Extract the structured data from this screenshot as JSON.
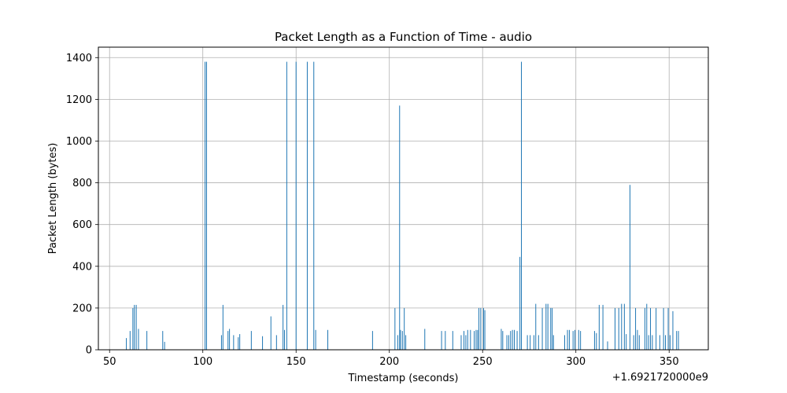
{
  "chart_data": {
    "type": "bar",
    "title": "Packet Length as a Function of Time - audio",
    "xlabel": "Timestamp (seconds)",
    "ylabel": "Packet Length (bytes)",
    "offset_label": "+1.6921720000e9",
    "xlim": [
      44,
      371
    ],
    "ylim": [
      0,
      1450
    ],
    "grid": true,
    "bar_color": "#1f77b4",
    "x_ticks": [
      "50",
      "100",
      "150",
      "200",
      "250",
      "300",
      "350"
    ],
    "y_ticks": [
      "0",
      "200",
      "400",
      "600",
      "800",
      "1000",
      "1200",
      "1400"
    ],
    "x_tick_values": [
      50,
      100,
      150,
      200,
      250,
      300,
      350
    ],
    "y_tick_values": [
      0,
      200,
      400,
      600,
      800,
      1000,
      1200,
      1400
    ],
    "points": [
      {
        "x": 59,
        "y": 56
      },
      {
        "x": 61,
        "y": 90
      },
      {
        "x": 62.5,
        "y": 200
      },
      {
        "x": 63.3,
        "y": 215
      },
      {
        "x": 64.3,
        "y": 215
      },
      {
        "x": 65.5,
        "y": 100
      },
      {
        "x": 70,
        "y": 90
      },
      {
        "x": 78.5,
        "y": 90
      },
      {
        "x": 79.5,
        "y": 38
      },
      {
        "x": 101.2,
        "y": 1380
      },
      {
        "x": 102,
        "y": 1380
      },
      {
        "x": 110,
        "y": 70
      },
      {
        "x": 110.8,
        "y": 215
      },
      {
        "x": 113.5,
        "y": 90
      },
      {
        "x": 114.3,
        "y": 100
      },
      {
        "x": 116.5,
        "y": 70
      },
      {
        "x": 119,
        "y": 60
      },
      {
        "x": 119.8,
        "y": 75
      },
      {
        "x": 126,
        "y": 90
      },
      {
        "x": 132,
        "y": 65
      },
      {
        "x": 136.5,
        "y": 160
      },
      {
        "x": 139.5,
        "y": 70
      },
      {
        "x": 143,
        "y": 215
      },
      {
        "x": 143.8,
        "y": 95
      },
      {
        "x": 145,
        "y": 1380
      },
      {
        "x": 150,
        "y": 1380
      },
      {
        "x": 156,
        "y": 1380
      },
      {
        "x": 159.5,
        "y": 1380
      },
      {
        "x": 160.5,
        "y": 95
      },
      {
        "x": 167,
        "y": 95
      },
      {
        "x": 191,
        "y": 90
      },
      {
        "x": 203,
        "y": 200
      },
      {
        "x": 204.5,
        "y": 70
      },
      {
        "x": 205.5,
        "y": 1170
      },
      {
        "x": 206,
        "y": 95
      },
      {
        "x": 207,
        "y": 90
      },
      {
        "x": 208,
        "y": 200
      },
      {
        "x": 208.8,
        "y": 70
      },
      {
        "x": 219,
        "y": 100
      },
      {
        "x": 228,
        "y": 90
      },
      {
        "x": 230,
        "y": 90
      },
      {
        "x": 234,
        "y": 90
      },
      {
        "x": 238.5,
        "y": 70
      },
      {
        "x": 240,
        "y": 90
      },
      {
        "x": 241,
        "y": 70
      },
      {
        "x": 242,
        "y": 95
      },
      {
        "x": 243.5,
        "y": 95
      },
      {
        "x": 245.5,
        "y": 90
      },
      {
        "x": 246.5,
        "y": 95
      },
      {
        "x": 247.3,
        "y": 95
      },
      {
        "x": 248,
        "y": 200
      },
      {
        "x": 249,
        "y": 200
      },
      {
        "x": 250.5,
        "y": 200
      },
      {
        "x": 251.2,
        "y": 190
      },
      {
        "x": 260,
        "y": 100
      },
      {
        "x": 260.8,
        "y": 90
      },
      {
        "x": 263,
        "y": 70
      },
      {
        "x": 264,
        "y": 70
      },
      {
        "x": 265,
        "y": 90
      },
      {
        "x": 266,
        "y": 95
      },
      {
        "x": 267,
        "y": 95
      },
      {
        "x": 268.5,
        "y": 90
      },
      {
        "x": 270,
        "y": 445
      },
      {
        "x": 270.8,
        "y": 1380
      },
      {
        "x": 274,
        "y": 70
      },
      {
        "x": 275.5,
        "y": 70
      },
      {
        "x": 277.5,
        "y": 70
      },
      {
        "x": 278.5,
        "y": 220
      },
      {
        "x": 280,
        "y": 70
      },
      {
        "x": 282,
        "y": 200
      },
      {
        "x": 284,
        "y": 220
      },
      {
        "x": 285,
        "y": 220
      },
      {
        "x": 286.5,
        "y": 200
      },
      {
        "x": 287.3,
        "y": 200
      },
      {
        "x": 288,
        "y": 70
      },
      {
        "x": 294,
        "y": 70
      },
      {
        "x": 295.5,
        "y": 95
      },
      {
        "x": 296.5,
        "y": 95
      },
      {
        "x": 298.5,
        "y": 90
      },
      {
        "x": 299.5,
        "y": 95
      },
      {
        "x": 301.5,
        "y": 95
      },
      {
        "x": 302.5,
        "y": 90
      },
      {
        "x": 310,
        "y": 90
      },
      {
        "x": 311,
        "y": 80
      },
      {
        "x": 312.5,
        "y": 215
      },
      {
        "x": 314.5,
        "y": 215
      },
      {
        "x": 317,
        "y": 40
      },
      {
        "x": 321,
        "y": 200
      },
      {
        "x": 323,
        "y": 200
      },
      {
        "x": 324.5,
        "y": 220
      },
      {
        "x": 326,
        "y": 220
      },
      {
        "x": 327,
        "y": 75
      },
      {
        "x": 329,
        "y": 790
      },
      {
        "x": 331,
        "y": 70
      },
      {
        "x": 332,
        "y": 200
      },
      {
        "x": 333,
        "y": 95
      },
      {
        "x": 334,
        "y": 70
      },
      {
        "x": 337,
        "y": 200
      },
      {
        "x": 338,
        "y": 220
      },
      {
        "x": 339,
        "y": 70
      },
      {
        "x": 340,
        "y": 200
      },
      {
        "x": 341,
        "y": 70
      },
      {
        "x": 343,
        "y": 200
      },
      {
        "x": 345,
        "y": 70
      },
      {
        "x": 347,
        "y": 200
      },
      {
        "x": 348,
        "y": 70
      },
      {
        "x": 349.5,
        "y": 200
      },
      {
        "x": 350.5,
        "y": 70
      },
      {
        "x": 352,
        "y": 185
      },
      {
        "x": 354,
        "y": 90
      },
      {
        "x": 355,
        "y": 90
      }
    ]
  }
}
